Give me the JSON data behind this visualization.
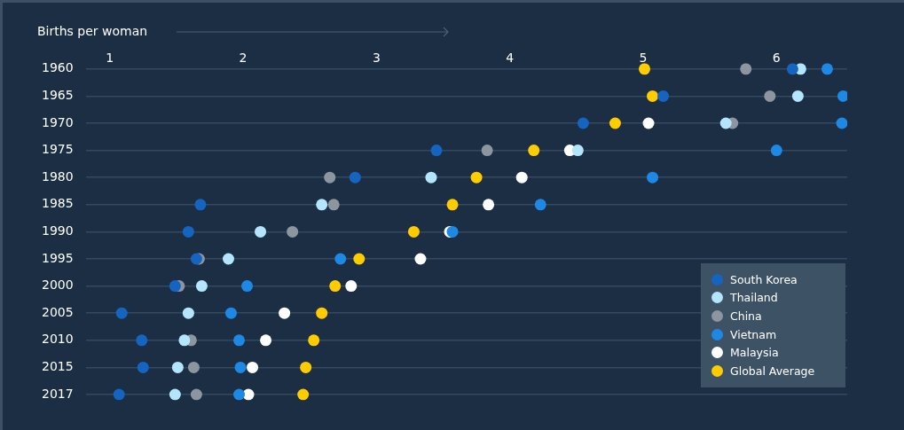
{
  "chart_data": {
    "type": "scatter",
    "xlabel": "Births per woman",
    "categories": [
      "1960",
      "1965",
      "1970",
      "1975",
      "1980",
      "1985",
      "1990",
      "1995",
      "2000",
      "2005",
      "2010",
      "2015",
      "2017"
    ],
    "series": [
      {
        "name": "South Korea",
        "color": "#1565c0",
        "values": [
          6.12,
          5.15,
          4.55,
          3.45,
          2.84,
          1.68,
          1.59,
          1.65,
          1.49,
          1.09,
          1.24,
          1.25,
          1.07
        ]
      },
      {
        "name": "Thailand",
        "color": "#b3e5fc",
        "values": [
          6.18,
          6.16,
          5.62,
          4.51,
          3.41,
          2.59,
          2.13,
          1.89,
          1.69,
          1.59,
          1.56,
          1.51,
          1.49
        ]
      },
      {
        "name": "China",
        "color": "#8d959e",
        "values": [
          5.77,
          5.95,
          5.67,
          3.83,
          2.65,
          2.68,
          2.37,
          1.67,
          1.52,
          null,
          1.61,
          1.63,
          1.65
        ]
      },
      {
        "name": "Vietnam",
        "color": "#1e88e5",
        "values": [
          6.38,
          6.5,
          6.49,
          6.0,
          5.07,
          4.23,
          3.57,
          2.73,
          2.03,
          1.91,
          1.97,
          1.98,
          1.97
        ]
      },
      {
        "name": "Malaysia",
        "color": "#ffffff",
        "values": [
          null,
          null,
          5.04,
          4.45,
          4.09,
          3.84,
          3.55,
          3.33,
          2.81,
          2.31,
          2.17,
          2.07,
          2.04
        ]
      },
      {
        "name": "Global Average",
        "color": "#ffcc00",
        "values": [
          5.01,
          5.07,
          4.79,
          4.18,
          3.75,
          3.57,
          3.28,
          2.87,
          2.69,
          2.59,
          2.53,
          2.47,
          2.45
        ]
      }
    ],
    "orientation": "horizontal",
    "xlim": [
      0.82,
      6.53
    ],
    "xticks": [
      1,
      2,
      3,
      4,
      5,
      6
    ],
    "grid": "y",
    "legend": "bottom right",
    "marker": "circle"
  }
}
